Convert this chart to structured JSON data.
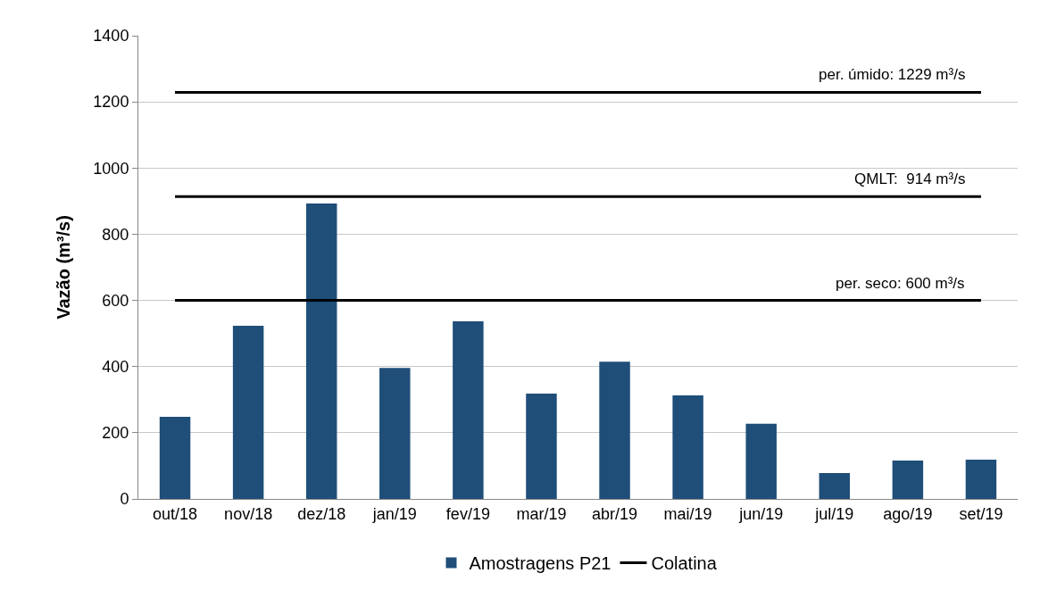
{
  "chart_data": {
    "type": "bar",
    "ylabel": "Vazão (m³/s)",
    "categories": [
      "out/18",
      "nov/18",
      "dez/18",
      "jan/19",
      "fev/19",
      "mar/19",
      "abr/19",
      "mai/19",
      "jun/19",
      "jul/19",
      "ago/19",
      "set/19"
    ],
    "series": [
      {
        "name": "Amostragens P21",
        "color": "#1f4e79",
        "values": [
          248,
          523,
          893,
          396,
          537,
          318,
          415,
          313,
          227,
          78,
          116,
          119
        ]
      },
      {
        "name": "Colatina",
        "type": "line",
        "color": "#000000",
        "values": [
          null,
          null,
          null,
          null,
          null,
          null,
          null,
          null,
          null,
          null,
          null,
          null
        ]
      }
    ],
    "ref_lines": [
      {
        "axis": "y",
        "value": 1229,
        "label": "per. úmido: 1229 m³/s",
        "color": "#000000"
      },
      {
        "axis": "y",
        "value": 914,
        "label": "QMLT:  914 m³/s",
        "color": "#000000"
      },
      {
        "axis": "y",
        "value": 600,
        "label": "per. seco: 600 m³/s",
        "color": "#000000"
      }
    ],
    "ylim": [
      0,
      1400
    ],
    "yticks": [
      0,
      200,
      400,
      600,
      800,
      1000,
      1200,
      1400
    ],
    "grid": "y",
    "legend": "bottom"
  }
}
